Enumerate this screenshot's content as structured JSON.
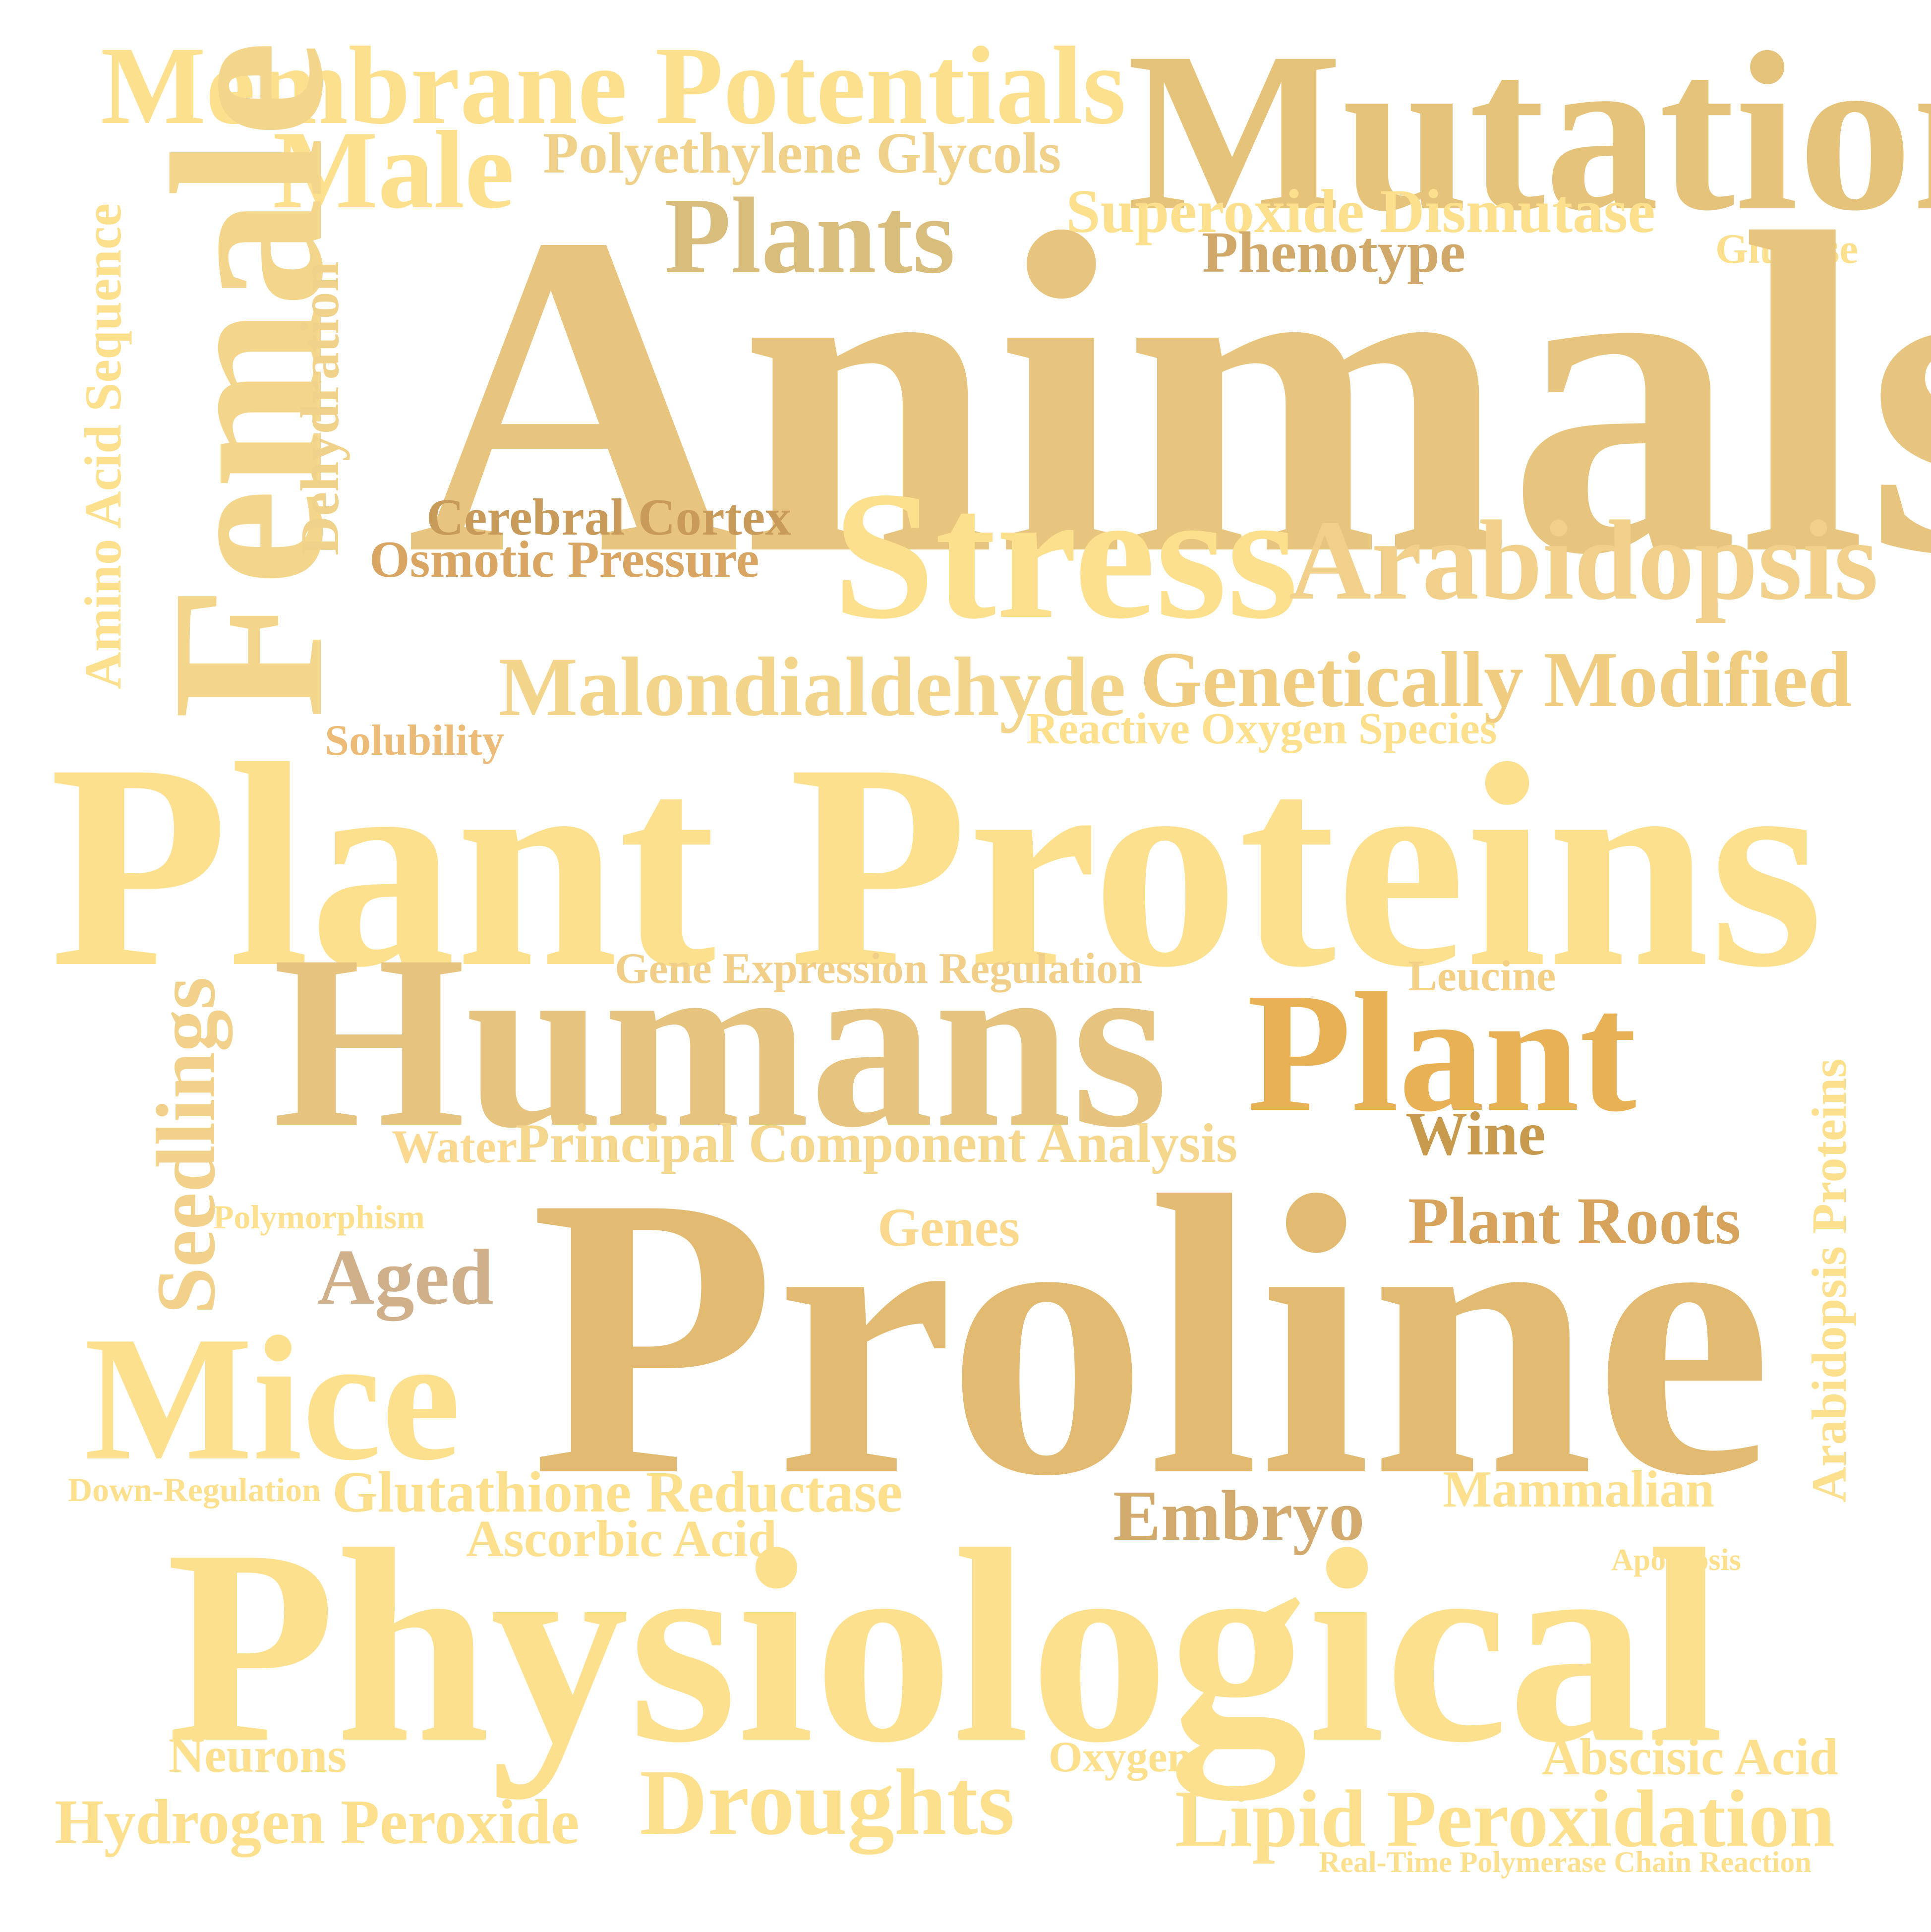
{
  "words": [
    {
      "text": "Membrane Potentials",
      "color": "#fde08e"
    },
    {
      "text": "Mutation",
      "color": "#e6c37a"
    },
    {
      "text": "Male",
      "color": "#fde08e"
    },
    {
      "text": "Polyethylene Glycols",
      "color": "#efd18a"
    },
    {
      "text": "Female",
      "color": "#f3d68c"
    },
    {
      "text": "Superoxide Dismutase",
      "color": "#fde08e"
    },
    {
      "text": "Plants",
      "color": "#d9bd7d"
    },
    {
      "text": "Phenotype",
      "color": "#cfa86a"
    },
    {
      "text": "Glucose",
      "color": "#fde08e"
    },
    {
      "text": "Amino Acid Sequence",
      "color": "#fde08e"
    },
    {
      "text": "Dehydration",
      "color": "#f1d28a"
    },
    {
      "text": "Animals",
      "color": "#e8c57e"
    },
    {
      "text": "Cerebral Cortex",
      "color": "#c99b5a"
    },
    {
      "text": "Osmotic Pressure",
      "color": "#d8a563"
    },
    {
      "text": "Stress",
      "color": "#fde08e"
    },
    {
      "text": "Arabidopsis",
      "color": "#f0d08a"
    },
    {
      "text": "Malondialdehyde",
      "color": "#f3d48b"
    },
    {
      "text": "Genetically Modified",
      "color": "#efcc7f"
    },
    {
      "text": "Reactive Oxygen Species",
      "color": "#fde08e"
    },
    {
      "text": "Solubility",
      "color": "#ebbb77"
    },
    {
      "text": "Plant Proteins",
      "color": "#fde08e"
    },
    {
      "text": "Gene Expression Regulation",
      "color": "#f1cf88"
    },
    {
      "text": "Leucine",
      "color": "#f4cf86"
    },
    {
      "text": "Humans",
      "color": "#e6c37f"
    },
    {
      "text": "Plant",
      "color": "#e8b155"
    },
    {
      "text": "Seedlings",
      "color": "#f2d18a"
    },
    {
      "text": "Arabidopsis Proteins",
      "color": "#fde08e"
    },
    {
      "text": "Water",
      "color": "#fbd88f"
    },
    {
      "text": "Principal Component Analysis",
      "color": "#f5d68d"
    },
    {
      "text": "Wine",
      "color": "#c89a4e"
    },
    {
      "text": "Polymorphism",
      "color": "#fde08e"
    },
    {
      "text": "Genes",
      "color": "#fad88e"
    },
    {
      "text": "Plant Roots",
      "color": "#d6a35d"
    },
    {
      "text": "Aged",
      "color": "#cfb08b"
    },
    {
      "text": "Proline",
      "color": "#e2ba72"
    },
    {
      "text": "Mice",
      "color": "#fde08e"
    },
    {
      "text": "Down-Regulation",
      "color": "#fde08e"
    },
    {
      "text": "Glutathione Reductase",
      "color": "#fde08e"
    },
    {
      "text": "Ascorbic Acid",
      "color": "#fde08e"
    },
    {
      "text": "Embryo",
      "color": "#d2aa6e"
    },
    {
      "text": "Mammalian",
      "color": "#fde08e"
    },
    {
      "text": "Apoptosis",
      "color": "#fde08e"
    },
    {
      "text": "Physiological",
      "color": "#fde08e"
    },
    {
      "text": "Neurons",
      "color": "#fde08e"
    },
    {
      "text": "Oxygen",
      "color": "#fde08e"
    },
    {
      "text": "Abscisic Acid",
      "color": "#fde08e"
    },
    {
      "text": "Droughts",
      "color": "#fde08e"
    },
    {
      "text": "Hydrogen Peroxide",
      "color": "#fde08e"
    },
    {
      "text": "Lipid Peroxidation",
      "color": "#fde08e"
    },
    {
      "text": "Real-Time Polymerase Chain Reaction",
      "color": "#fde08e"
    }
  ]
}
